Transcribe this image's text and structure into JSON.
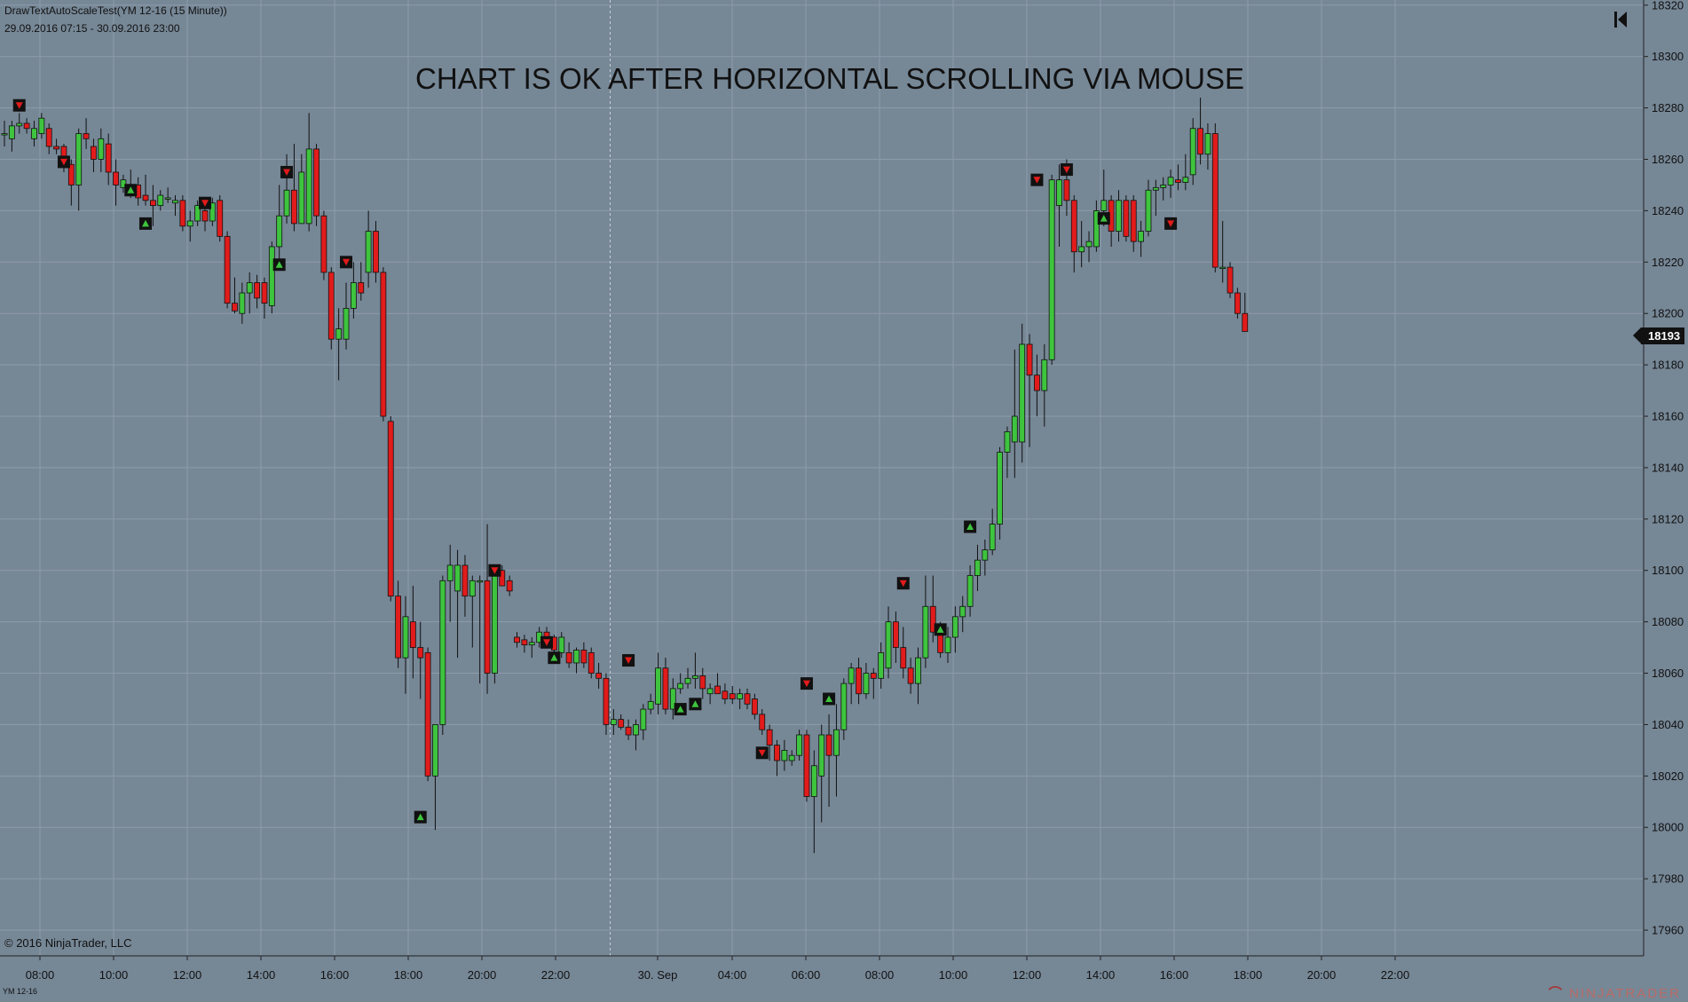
{
  "window": {
    "instrument_title": "DrawTextAutoScaleTest(YM 12-16 (15 Minute))",
    "date_range": "29.09.2016 07:15 - 30.09.2016 23:00",
    "copyright": "© 2016 NinjaTrader, LLC",
    "ticker": "YM 12-16",
    "brand": "NINJATRADER"
  },
  "colors": {
    "background": "#768796",
    "grid": "#8d9cab",
    "up": "#3ec43e",
    "down": "#e21b1b",
    "wick": "#111111",
    "signal_box": "#111111"
  },
  "icons": {
    "nav_first": "skip-to-start-icon"
  },
  "chart_data": {
    "type": "candlestick",
    "title": "CHART IS OK  AFTER HORIZONTAL SCROLLING VIA MOUSE",
    "ylim": [
      17950,
      18322
    ],
    "y_ticks": [
      17960,
      17980,
      18000,
      18020,
      18040,
      18060,
      18080,
      18100,
      18120,
      18140,
      18160,
      18180,
      18200,
      18220,
      18240,
      18260,
      18280,
      18300,
      18320
    ],
    "y_tick_labels": [
      "17960",
      "17980",
      "18000",
      "18020",
      "18040",
      "18060",
      "18080",
      "18100",
      "18120",
      "18140",
      "18160",
      "18180",
      "18200",
      "18220",
      "18240",
      "18260",
      "18280",
      "18300",
      "18320"
    ],
    "x_ticks": [
      "08:00",
      "10:00",
      "12:00",
      "14:00",
      "16:00",
      "18:00",
      "20:00",
      "22:00",
      "30. Sep",
      "04:00",
      "06:00",
      "08:00",
      "10:00",
      "12:00",
      "14:00",
      "16:00",
      "18:00",
      "20:00",
      "22:00"
    ],
    "session_break_after_tick": 7,
    "last_price": "18193",
    "grid": true,
    "candles": [
      {
        "o": 18270,
        "h": 18275,
        "l": 18265,
        "c": 18270
      },
      {
        "o": 18268,
        "h": 18275,
        "l": 18263,
        "c": 18273
      },
      {
        "o": 18273,
        "h": 18278,
        "l": 18270,
        "c": 18274
      },
      {
        "o": 18274,
        "h": 18276,
        "l": 18270,
        "c": 18272
      },
      {
        "o": 18268,
        "h": 18275,
        "l": 18265,
        "c": 18272
      },
      {
        "o": 18270,
        "h": 18278,
        "l": 18268,
        "c": 18276
      },
      {
        "o": 18272,
        "h": 18274,
        "l": 18262,
        "c": 18265
      },
      {
        "o": 18265,
        "h": 18268,
        "l": 18262,
        "c": 18264
      },
      {
        "o": 18265,
        "h": 18266,
        "l": 18255,
        "c": 18258
      },
      {
        "o": 18258,
        "h": 18260,
        "l": 18242,
        "c": 18250
      },
      {
        "o": 18250,
        "h": 18272,
        "l": 18240,
        "c": 18270
      },
      {
        "o": 18270,
        "h": 18276,
        "l": 18264,
        "c": 18268
      },
      {
        "o": 18265,
        "h": 18268,
        "l": 18255,
        "c": 18260
      },
      {
        "o": 18260,
        "h": 18272,
        "l": 18255,
        "c": 18268
      },
      {
        "o": 18266,
        "h": 18270,
        "l": 18250,
        "c": 18255
      },
      {
        "o": 18255,
        "h": 18260,
        "l": 18242,
        "c": 18250
      },
      {
        "o": 18249,
        "h": 18254,
        "l": 18247,
        "c": 18252
      },
      {
        "o": 18250,
        "h": 18256,
        "l": 18245,
        "c": 18248
      },
      {
        "o": 18250,
        "h": 18253,
        "l": 18242,
        "c": 18245
      },
      {
        "o": 18246,
        "h": 18254,
        "l": 18242,
        "c": 18244
      },
      {
        "o": 18244,
        "h": 18250,
        "l": 18234,
        "c": 18242
      },
      {
        "o": 18242,
        "h": 18248,
        "l": 18240,
        "c": 18246
      },
      {
        "o": 18245,
        "h": 18249,
        "l": 18243,
        "c": 18245
      },
      {
        "o": 18243,
        "h": 18246,
        "l": 18238,
        "c": 18244
      },
      {
        "o": 18244,
        "h": 18246,
        "l": 18232,
        "c": 18234
      },
      {
        "o": 18234,
        "h": 18240,
        "l": 18228,
        "c": 18236
      },
      {
        "o": 18236,
        "h": 18244,
        "l": 18234,
        "c": 18242
      },
      {
        "o": 18240,
        "h": 18244,
        "l": 18232,
        "c": 18236
      },
      {
        "o": 18236,
        "h": 18245,
        "l": 18234,
        "c": 18243
      },
      {
        "o": 18244,
        "h": 18246,
        "l": 18228,
        "c": 18230
      },
      {
        "o": 18230,
        "h": 18232,
        "l": 18202,
        "c": 18204
      },
      {
        "o": 18204,
        "h": 18214,
        "l": 18200,
        "c": 18201
      },
      {
        "o": 18200,
        "h": 18212,
        "l": 18196,
        "c": 18208
      },
      {
        "o": 18208,
        "h": 18216,
        "l": 18200,
        "c": 18212
      },
      {
        "o": 18212,
        "h": 18215,
        "l": 18202,
        "c": 18206
      },
      {
        "o": 18212,
        "h": 18214,
        "l": 18198,
        "c": 18204
      },
      {
        "o": 18203,
        "h": 18228,
        "l": 18200,
        "c": 18226
      },
      {
        "o": 18226,
        "h": 18250,
        "l": 18220,
        "c": 18238
      },
      {
        "o": 18238,
        "h": 18262,
        "l": 18235,
        "c": 18248
      },
      {
        "o": 18248,
        "h": 18266,
        "l": 18232,
        "c": 18235
      },
      {
        "o": 18235,
        "h": 18262,
        "l": 18235,
        "c": 18255
      },
      {
        "o": 18235,
        "h": 18278,
        "l": 18232,
        "c": 18264
      },
      {
        "o": 18264,
        "h": 18266,
        "l": 18234,
        "c": 18238
      },
      {
        "o": 18238,
        "h": 18240,
        "l": 18213,
        "c": 18216
      },
      {
        "o": 18216,
        "h": 18218,
        "l": 18186,
        "c": 18190
      },
      {
        "o": 18190,
        "h": 18202,
        "l": 18174,
        "c": 18194
      },
      {
        "o": 18190,
        "h": 18212,
        "l": 18186,
        "c": 18202
      },
      {
        "o": 18202,
        "h": 18220,
        "l": 18198,
        "c": 18212
      },
      {
        "o": 18212,
        "h": 18220,
        "l": 18205,
        "c": 18208
      },
      {
        "o": 18216,
        "h": 18240,
        "l": 18210,
        "c": 18232
      },
      {
        "o": 18232,
        "h": 18236,
        "l": 18212,
        "c": 18216
      },
      {
        "o": 18216,
        "h": 18218,
        "l": 18158,
        "c": 18160
      },
      {
        "o": 18158,
        "h": 18160,
        "l": 18088,
        "c": 18090
      },
      {
        "o": 18090,
        "h": 18096,
        "l": 18062,
        "c": 18066
      },
      {
        "o": 18066,
        "h": 18090,
        "l": 18052,
        "c": 18082
      },
      {
        "o": 18080,
        "h": 18094,
        "l": 18058,
        "c": 18070
      },
      {
        "o": 18070,
        "h": 18080,
        "l": 18050,
        "c": 18066
      },
      {
        "o": 18068,
        "h": 18070,
        "l": 18018,
        "c": 18020
      },
      {
        "o": 18020,
        "h": 18040,
        "l": 17999,
        "c": 18040
      },
      {
        "o": 18040,
        "h": 18098,
        "l": 18036,
        "c": 18096
      },
      {
        "o": 18096,
        "h": 18110,
        "l": 18080,
        "c": 18102
      },
      {
        "o": 18092,
        "h": 18108,
        "l": 18066,
        "c": 18102
      },
      {
        "o": 18102,
        "h": 18106,
        "l": 18082,
        "c": 18090
      },
      {
        "o": 18090,
        "h": 18098,
        "l": 18070,
        "c": 18096
      },
      {
        "o": 18096,
        "h": 18098,
        "l": 18056,
        "c": 18096
      },
      {
        "o": 18096,
        "h": 18118,
        "l": 18052,
        "c": 18060
      },
      {
        "o": 18060,
        "h": 18102,
        "l": 18056,
        "c": 18100
      },
      {
        "o": 18100,
        "h": 18102,
        "l": 18094,
        "c": 18094
      },
      {
        "o": 18096,
        "h": 18098,
        "l": 18090,
        "c": 18092
      },
      {
        "o": 18074,
        "h": 18076,
        "l": 18070,
        "c": 18072
      },
      {
        "o": 18073,
        "h": 18075,
        "l": 18068,
        "c": 18071
      },
      {
        "o": 18071,
        "h": 18074,
        "l": 18066,
        "c": 18072
      },
      {
        "o": 18072,
        "h": 18078,
        "l": 18070,
        "c": 18076
      },
      {
        "o": 18076,
        "h": 18078,
        "l": 18072,
        "c": 18074
      },
      {
        "o": 18074,
        "h": 18075,
        "l": 18068,
        "c": 18069
      },
      {
        "o": 18068,
        "h": 18076,
        "l": 18066,
        "c": 18074
      },
      {
        "o": 18068,
        "h": 18072,
        "l": 18062,
        "c": 18064
      },
      {
        "o": 18064,
        "h": 18070,
        "l": 18060,
        "c": 18069
      },
      {
        "o": 18069,
        "h": 18072,
        "l": 18062,
        "c": 18064
      },
      {
        "o": 18068,
        "h": 18070,
        "l": 18058,
        "c": 18060
      },
      {
        "o": 18060,
        "h": 18064,
        "l": 18054,
        "c": 18058
      },
      {
        "o": 18058,
        "h": 18060,
        "l": 18036,
        "c": 18040
      },
      {
        "o": 18040,
        "h": 18046,
        "l": 18036,
        "c": 18042
      },
      {
        "o": 18042,
        "h": 18044,
        "l": 18038,
        "c": 18039
      },
      {
        "o": 18039,
        "h": 18042,
        "l": 18034,
        "c": 18036
      },
      {
        "o": 18036,
        "h": 18042,
        "l": 18030,
        "c": 18040
      },
      {
        "o": 18038,
        "h": 18048,
        "l": 18034,
        "c": 18046
      },
      {
        "o": 18046,
        "h": 18052,
        "l": 18044,
        "c": 18049
      },
      {
        "o": 18048,
        "h": 18068,
        "l": 18044,
        "c": 18062
      },
      {
        "o": 18062,
        "h": 18066,
        "l": 18044,
        "c": 18046
      },
      {
        "o": 18046,
        "h": 18058,
        "l": 18042,
        "c": 18054
      },
      {
        "o": 18054,
        "h": 18060,
        "l": 18052,
        "c": 18056
      },
      {
        "o": 18056,
        "h": 18062,
        "l": 18054,
        "c": 18058
      },
      {
        "o": 18058,
        "h": 18068,
        "l": 18054,
        "c": 18059
      },
      {
        "o": 18059,
        "h": 18062,
        "l": 18050,
        "c": 18054
      },
      {
        "o": 18052,
        "h": 18056,
        "l": 18048,
        "c": 18054
      },
      {
        "o": 18055,
        "h": 18060,
        "l": 18052,
        "c": 18052
      },
      {
        "o": 18053,
        "h": 18056,
        "l": 18048,
        "c": 18050
      },
      {
        "o": 18052,
        "h": 18055,
        "l": 18048,
        "c": 18050
      },
      {
        "o": 18050,
        "h": 18054,
        "l": 18046,
        "c": 18052
      },
      {
        "o": 18052,
        "h": 18054,
        "l": 18046,
        "c": 18048
      },
      {
        "o": 18050,
        "h": 18052,
        "l": 18042,
        "c": 18044
      },
      {
        "o": 18044,
        "h": 18046,
        "l": 18036,
        "c": 18038
      },
      {
        "o": 18038,
        "h": 18040,
        "l": 18026,
        "c": 18032
      },
      {
        "o": 18032,
        "h": 18034,
        "l": 18020,
        "c": 18026
      },
      {
        "o": 18026,
        "h": 18034,
        "l": 18022,
        "c": 18030
      },
      {
        "o": 18026,
        "h": 18030,
        "l": 18024,
        "c": 18028
      },
      {
        "o": 18028,
        "h": 18038,
        "l": 18026,
        "c": 18036
      },
      {
        "o": 18036,
        "h": 18038,
        "l": 18010,
        "c": 18012
      },
      {
        "o": 18012,
        "h": 18030,
        "l": 17990,
        "c": 18024
      },
      {
        "o": 18020,
        "h": 18040,
        "l": 18002,
        "c": 18036
      },
      {
        "o": 18036,
        "h": 18044,
        "l": 18008,
        "c": 18028
      },
      {
        "o": 18028,
        "h": 18048,
        "l": 18012,
        "c": 18038
      },
      {
        "o": 18038,
        "h": 18058,
        "l": 18034,
        "c": 18056
      },
      {
        "o": 18056,
        "h": 18064,
        "l": 18048,
        "c": 18062
      },
      {
        "o": 18062,
        "h": 18066,
        "l": 18048,
        "c": 18052
      },
      {
        "o": 18052,
        "h": 18064,
        "l": 18050,
        "c": 18060
      },
      {
        "o": 18060,
        "h": 18062,
        "l": 18050,
        "c": 18058
      },
      {
        "o": 18058,
        "h": 18072,
        "l": 18054,
        "c": 18068
      },
      {
        "o": 18062,
        "h": 18086,
        "l": 18058,
        "c": 18080
      },
      {
        "o": 18080,
        "h": 18084,
        "l": 18064,
        "c": 18070
      },
      {
        "o": 18070,
        "h": 18078,
        "l": 18058,
        "c": 18062
      },
      {
        "o": 18062,
        "h": 18066,
        "l": 18052,
        "c": 18056
      },
      {
        "o": 18056,
        "h": 18070,
        "l": 18048,
        "c": 18066
      },
      {
        "o": 18066,
        "h": 18098,
        "l": 18062,
        "c": 18086
      },
      {
        "o": 18086,
        "h": 18098,
        "l": 18072,
        "c": 18076
      },
      {
        "o": 18076,
        "h": 18080,
        "l": 18066,
        "c": 18068
      },
      {
        "o": 18068,
        "h": 18078,
        "l": 18064,
        "c": 18074
      },
      {
        "o": 18074,
        "h": 18086,
        "l": 18068,
        "c": 18082
      },
      {
        "o": 18082,
        "h": 18090,
        "l": 18076,
        "c": 18086
      },
      {
        "o": 18086,
        "h": 18102,
        "l": 18082,
        "c": 18098
      },
      {
        "o": 18098,
        "h": 18110,
        "l": 18092,
        "c": 18104
      },
      {
        "o": 18104,
        "h": 18112,
        "l": 18098,
        "c": 18108
      },
      {
        "o": 18108,
        "h": 18124,
        "l": 18106,
        "c": 18118
      },
      {
        "o": 18118,
        "h": 18148,
        "l": 18112,
        "c": 18146
      },
      {
        "o": 18146,
        "h": 18156,
        "l": 18136,
        "c": 18154
      },
      {
        "o": 18150,
        "h": 18186,
        "l": 18136,
        "c": 18160
      },
      {
        "o": 18150,
        "h": 18196,
        "l": 18142,
        "c": 18188
      },
      {
        "o": 18188,
        "h": 18192,
        "l": 18148,
        "c": 18176
      },
      {
        "o": 18176,
        "h": 18184,
        "l": 18160,
        "c": 18170
      },
      {
        "o": 18170,
        "h": 18188,
        "l": 18156,
        "c": 18182
      },
      {
        "o": 18182,
        "h": 18254,
        "l": 18180,
        "c": 18252
      },
      {
        "o": 18242,
        "h": 18258,
        "l": 18226,
        "c": 18252
      },
      {
        "o": 18252,
        "h": 18260,
        "l": 18238,
        "c": 18244
      },
      {
        "o": 18244,
        "h": 18246,
        "l": 18216,
        "c": 18224
      },
      {
        "o": 18224,
        "h": 18236,
        "l": 18218,
        "c": 18226
      },
      {
        "o": 18226,
        "h": 18232,
        "l": 18220,
        "c": 18228
      },
      {
        "o": 18226,
        "h": 18244,
        "l": 18224,
        "c": 18240
      },
      {
        "o": 18240,
        "h": 18256,
        "l": 18234,
        "c": 18244
      },
      {
        "o": 18244,
        "h": 18246,
        "l": 18226,
        "c": 18232
      },
      {
        "o": 18232,
        "h": 18248,
        "l": 18228,
        "c": 18244
      },
      {
        "o": 18244,
        "h": 18246,
        "l": 18228,
        "c": 18230
      },
      {
        "o": 18244,
        "h": 18246,
        "l": 18224,
        "c": 18228
      },
      {
        "o": 18228,
        "h": 18236,
        "l": 18222,
        "c": 18232
      },
      {
        "o": 18232,
        "h": 18252,
        "l": 18230,
        "c": 18248
      },
      {
        "o": 18248,
        "h": 18252,
        "l": 18238,
        "c": 18249
      },
      {
        "o": 18249,
        "h": 18253,
        "l": 18244,
        "c": 18250
      },
      {
        "o": 18250,
        "h": 18256,
        "l": 18245,
        "c": 18253
      },
      {
        "o": 18252,
        "h": 18258,
        "l": 18248,
        "c": 18251
      },
      {
        "o": 18251,
        "h": 18262,
        "l": 18248,
        "c": 18253
      },
      {
        "o": 18254,
        "h": 18276,
        "l": 18250,
        "c": 18272
      },
      {
        "o": 18272,
        "h": 18284,
        "l": 18258,
        "c": 18262
      },
      {
        "o": 18262,
        "h": 18274,
        "l": 18256,
        "c": 18270
      },
      {
        "o": 18270,
        "h": 18274,
        "l": 18216,
        "c": 18218
      },
      {
        "o": 18218,
        "h": 18236,
        "l": 18212,
        "c": 18218
      },
      {
        "o": 18218,
        "h": 18220,
        "l": 18206,
        "c": 18208
      },
      {
        "o": 18208,
        "h": 18210,
        "l": 18198,
        "c": 18200
      },
      {
        "o": 18200,
        "h": 18208,
        "l": 18194,
        "c": 18193
      }
    ],
    "signals": [
      {
        "index": 2,
        "dir": "down",
        "price": 18281
      },
      {
        "index": 8,
        "dir": "down",
        "price": 18259
      },
      {
        "index": 17,
        "dir": "up",
        "price": 18248
      },
      {
        "index": 19,
        "dir": "up",
        "price": 18235
      },
      {
        "index": 27,
        "dir": "down",
        "price": 18243
      },
      {
        "index": 37,
        "dir": "up",
        "price": 18219
      },
      {
        "index": 38,
        "dir": "down",
        "price": 18255
      },
      {
        "index": 46,
        "dir": "down",
        "price": 18220
      },
      {
        "index": 56,
        "dir": "up",
        "price": 18004
      },
      {
        "index": 66,
        "dir": "down",
        "price": 18100
      },
      {
        "index": 73,
        "dir": "down",
        "price": 18072
      },
      {
        "index": 74,
        "dir": "up",
        "price": 18066
      },
      {
        "index": 84,
        "dir": "down",
        "price": 18065
      },
      {
        "index": 91,
        "dir": "up",
        "price": 18046
      },
      {
        "index": 93,
        "dir": "up",
        "price": 18048
      },
      {
        "index": 102,
        "dir": "down",
        "price": 18029
      },
      {
        "index": 108,
        "dir": "down",
        "price": 18056
      },
      {
        "index": 111,
        "dir": "up",
        "price": 18050
      },
      {
        "index": 121,
        "dir": "down",
        "price": 18095
      },
      {
        "index": 126,
        "dir": "up",
        "price": 18077
      },
      {
        "index": 130,
        "dir": "up",
        "price": 18117
      },
      {
        "index": 139,
        "dir": "down",
        "price": 18252
      },
      {
        "index": 143,
        "dir": "down",
        "price": 18256
      },
      {
        "index": 148,
        "dir": "up",
        "price": 18237
      },
      {
        "index": 157,
        "dir": "down",
        "price": 18235
      }
    ]
  }
}
